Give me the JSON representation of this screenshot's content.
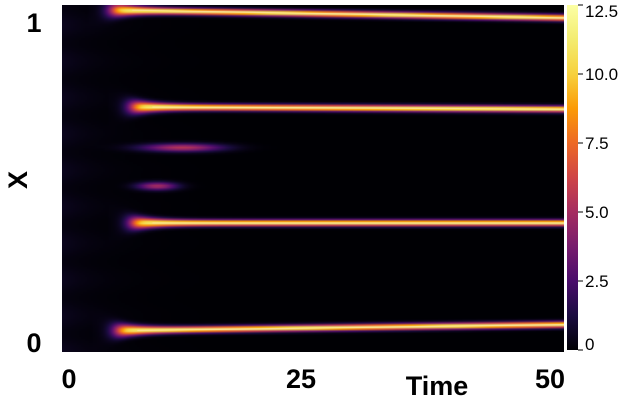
{
  "chart_data": {
    "type": "heatmap",
    "title": "",
    "xlabel": "Time",
    "ylabel": "X",
    "xlim": [
      0,
      50
    ],
    "ylim": [
      0,
      1
    ],
    "x_ticks": [
      "0",
      "25",
      "50"
    ],
    "y_ticks": [
      "0",
      "1"
    ],
    "colorbar": {
      "range": [
        0,
        12.5
      ],
      "tick_values": [
        0,
        2.5,
        5.0,
        7.5,
        10.0,
        12.5
      ],
      "tick_labels": [
        "0",
        "2.5",
        "5.0",
        "7.5",
        "10.0",
        "12.5"
      ],
      "colormap": "inferno"
    },
    "stripes": [
      {
        "x_start": 5.5,
        "x_end": 50,
        "y_start": 0.062,
        "y_end": 0.079,
        "peak": 11.5
      },
      {
        "x_start": 7.0,
        "x_end": 50,
        "y_start": 0.372,
        "y_end": 0.372,
        "peak": 11.5
      },
      {
        "x_start": 7.0,
        "x_end": 50,
        "y_start": 0.706,
        "y_end": 0.7,
        "peak": 11.5
      },
      {
        "x_start": 5.0,
        "x_end": 50,
        "y_start": 0.985,
        "y_end": 0.963,
        "peak": 11.5
      }
    ],
    "transients": [
      {
        "x_start": 7.0,
        "x_end": 17.0,
        "y": 0.589,
        "peak": 5.5
      },
      {
        "x_start": 7.0,
        "x_end": 12.0,
        "y": 0.478,
        "peak": 5.0
      }
    ],
    "background_level": 0.4
  }
}
